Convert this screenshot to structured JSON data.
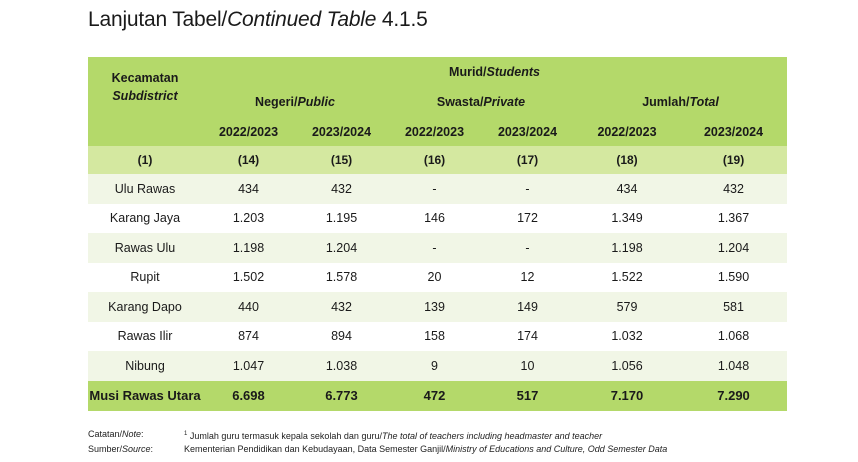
{
  "title": {
    "prefix": "Lanjutan Tabel/",
    "italic": "Continued Table",
    "number": " 4.1.5"
  },
  "header": {
    "kecamatan": "Kecamatan",
    "subdistrict": "Subdistrict",
    "murid": "Murid/",
    "students": "Students",
    "negeri": "Negeri/",
    "public": "Public",
    "swasta": "Swasta/",
    "private": "Private",
    "jumlah": "Jumlah/",
    "total": "Total",
    "years": [
      "2022/2023",
      "2023/2024",
      "2022/2023",
      "2023/2024",
      "2022/2023",
      "2023/2024"
    ],
    "col_numbers": [
      "(1)",
      "(14)",
      "(15)",
      "(16)",
      "(17)",
      "(18)",
      "(19)"
    ]
  },
  "rows": [
    {
      "name": "Ulu Rawas",
      "v": [
        "434",
        "432",
        "-",
        "-",
        "434",
        "432"
      ]
    },
    {
      "name": "Karang Jaya",
      "v": [
        "1.203",
        "1.195",
        "146",
        "172",
        "1.349",
        "1.367"
      ]
    },
    {
      "name": "Rawas Ulu",
      "v": [
        "1.198",
        "1.204",
        "-",
        "-",
        "1.198",
        "1.204"
      ]
    },
    {
      "name": "Rupit",
      "v": [
        "1.502",
        "1.578",
        "20",
        "12",
        "1.522",
        "1.590"
      ]
    },
    {
      "name": "Karang Dapo",
      "v": [
        "440",
        "432",
        "139",
        "149",
        "579",
        "581"
      ]
    },
    {
      "name": "Rawas Ilir",
      "v": [
        "874",
        "894",
        "158",
        "174",
        "1.032",
        "1.068"
      ]
    },
    {
      "name": "Nibung",
      "v": [
        "1.047",
        "1.038",
        "9",
        "10",
        "1.056",
        "1.048"
      ]
    }
  ],
  "total_row": {
    "name": "Musi Rawas Utara",
    "v": [
      "6.698",
      "6.773",
      "472",
      "517",
      "7.170",
      "7.290"
    ]
  },
  "notes": {
    "catatan_label": "Catatan/",
    "catatan_italic": "Note",
    "catatan_suffix": ":",
    "catatan_sup": "1",
    "catatan_text": " Jumlah guru termasuk kepala sekolah dan guru/",
    "catatan_text_italic": "The total of teachers including headmaster and teacher",
    "sumber_label": "Sumber/",
    "sumber_italic": "Source",
    "sumber_suffix": ":",
    "sumber_text": "Kementerian Pendidikan dan Kebudayaan, Data Semester Ganjil/",
    "sumber_text_italic": "Ministry of Educations and Culture, Odd Semester Data"
  }
}
